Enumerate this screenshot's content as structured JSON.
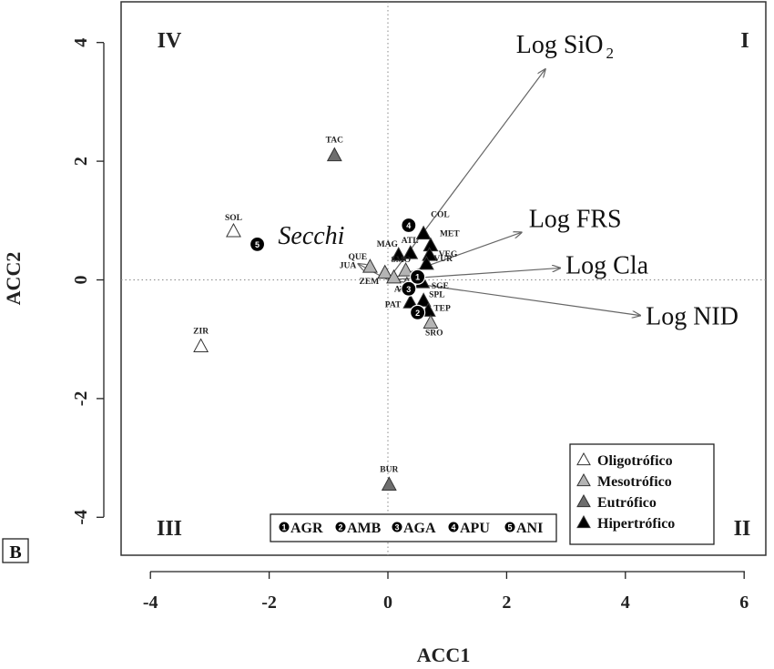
{
  "chart_data": {
    "type": "scatter",
    "xlabel": "ACC1",
    "ylabel": "ACC2",
    "xlim": [
      -4.6,
      6.2
    ],
    "ylim": [
      -4.6,
      4.6
    ],
    "xticks": [
      -4,
      -2,
      0,
      2,
      4,
      6
    ],
    "yticks": [
      -4,
      -2,
      0,
      2,
      4
    ],
    "grid": false,
    "reference_lines": [
      0,
      0
    ],
    "panel_letter": "B",
    "quadrants": {
      "I": "I",
      "II": "II",
      "III": "III",
      "IV": "IV"
    },
    "status_colors": {
      "Oligotrófico": "#ffffff",
      "Mesotrófico": "#b4b4b4",
      "Eutrófico": "#6e6e6e",
      "Hipertrófico": "#000000"
    },
    "sites": [
      {
        "label": "TAC",
        "x": -0.9,
        "y": 2.1,
        "status": "Eutrófico"
      },
      {
        "label": "SOL",
        "x": -2.6,
        "y": 0.82,
        "status": "Oligotrófico"
      },
      {
        "label": "ZIR",
        "x": -3.15,
        "y": -1.12,
        "status": "Oligotrófico"
      },
      {
        "label": "BUR",
        "x": 0.02,
        "y": -3.45,
        "status": "Eutrófico"
      },
      {
        "label": "COL",
        "x": 0.6,
        "y": 0.78,
        "status": "Hipertrófico"
      },
      {
        "label": "MET",
        "x": 0.72,
        "y": 0.58,
        "status": "Hipertrófico"
      },
      {
        "label": "VEG",
        "x": 0.7,
        "y": 0.42,
        "status": "Hipertrófico"
      },
      {
        "label": "VUR",
        "x": 0.65,
        "y": 0.27,
        "status": "Hipertrófico"
      },
      {
        "label": "MAG",
        "x": 0.18,
        "y": 0.42,
        "status": "Hipertrófico"
      },
      {
        "label": "ATL",
        "x": 0.38,
        "y": 0.45,
        "status": "Hipertrófico"
      },
      {
        "label": "QUE",
        "x": -0.3,
        "y": 0.22,
        "status": "Mesotrófico"
      },
      {
        "label": "SMO",
        "x": 0.3,
        "y": 0.16,
        "status": "Mesotrófico"
      },
      {
        "label": "JUA",
        "x": -0.05,
        "y": 0.12,
        "status": "Mesotrófico"
      },
      {
        "label": "ZEM",
        "x": 0.1,
        "y": 0.04,
        "status": "Mesotrófico"
      },
      {
        "label": "ATE",
        "x": 0.32,
        "y": -0.08,
        "status": "Mesotrófico"
      },
      {
        "label": "SGE",
        "x": 0.58,
        "y": -0.04,
        "status": "Hipertrófico"
      },
      {
        "label": "SPL",
        "x": 0.6,
        "y": -0.35,
        "status": "Hipertrófico"
      },
      {
        "label": "PAT",
        "x": 0.38,
        "y": -0.38,
        "status": "Hipertrófico"
      },
      {
        "label": "TEP",
        "x": 0.68,
        "y": -0.52,
        "status": "Hipertrófico"
      },
      {
        "label": "SRO",
        "x": 0.72,
        "y": -0.72,
        "status": "Mesotrófico"
      }
    ],
    "groups": [
      {
        "num": "1",
        "name": "AGR",
        "x": 0.5,
        "y": 0.05
      },
      {
        "num": "2",
        "name": "AMB",
        "x": 0.5,
        "y": -0.55
      },
      {
        "num": "3",
        "name": "AGA",
        "x": 0.35,
        "y": -0.15
      },
      {
        "num": "4",
        "name": "APU",
        "x": 0.35,
        "y": 0.92
      },
      {
        "num": "5",
        "name": "ANI",
        "x": -2.2,
        "y": 0.6
      }
    ],
    "vectors": [
      {
        "label": "Log SiO",
        "subscript": "2",
        "x": 2.65,
        "y": 3.55
      },
      {
        "label": "Log FRS",
        "subscript": "",
        "x": 2.25,
        "y": 0.8
      },
      {
        "label": "Log Cla",
        "subscript": "",
        "x": 2.9,
        "y": 0.2
      },
      {
        "label": "Log NID",
        "subscript": "",
        "x": 4.25,
        "y": -0.6
      },
      {
        "label": "Secchi",
        "subscript": "",
        "x": -0.5,
        "y": 0.27,
        "italic": true
      }
    ],
    "legend": {
      "position": "bottom-right",
      "items": [
        "Oligotrófico",
        "Mesotrófico",
        "Eutrófico",
        "Hipertrófico"
      ]
    }
  }
}
